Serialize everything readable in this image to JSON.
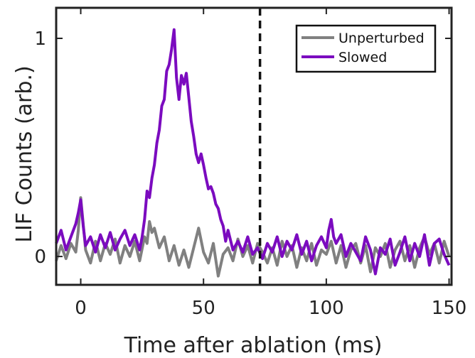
{
  "chart_data": {
    "type": "line",
    "title": "",
    "xlabel": "Time after ablation (ms)",
    "ylabel": "LIF Counts (arb.)",
    "xlim": [
      -10,
      151
    ],
    "ylim": [
      -0.13,
      1.14
    ],
    "xticks": [
      0,
      50,
      100,
      150
    ],
    "xtick_labels": [
      "0",
      "50",
      "100",
      "150"
    ],
    "yticks": [
      0,
      1
    ],
    "ytick_labels": [
      "0",
      "1"
    ],
    "grid": false,
    "legend_position": "top-right",
    "annotations": [
      {
        "type": "vertical-dashed-line",
        "x": 73
      }
    ],
    "series": [
      {
        "name": "Unperturbed",
        "color": "#808080",
        "x": [
          -10,
          -8,
          -6,
          -4,
          -2,
          -1,
          0,
          1,
          2,
          4,
          6,
          8,
          10,
          12,
          14,
          16,
          18,
          20,
          22,
          24,
          26,
          27,
          28,
          29,
          30,
          32,
          34,
          36,
          38,
          40,
          42,
          44,
          46,
          48,
          50,
          52,
          54,
          56,
          58,
          60,
          62,
          64,
          66,
          68,
          70,
          72,
          74,
          76,
          78,
          80,
          82,
          84,
          86,
          88,
          90,
          92,
          94,
          96,
          98,
          100,
          102,
          104,
          106,
          108,
          110,
          112,
          114,
          116,
          118,
          120,
          122,
          124,
          126,
          128,
          130,
          132,
          134,
          136,
          138,
          140,
          142,
          144,
          146,
          148,
          150
        ],
        "y": [
          -0.02,
          0.05,
          -0.01,
          0.06,
          0.02,
          0.12,
          0.27,
          0.15,
          0.03,
          -0.03,
          0.07,
          -0.02,
          0.06,
          0.01,
          0.08,
          -0.03,
          0.05,
          0.0,
          0.07,
          -0.02,
          0.09,
          0.06,
          0.16,
          0.11,
          0.13,
          0.04,
          0.09,
          -0.02,
          0.05,
          -0.04,
          0.03,
          -0.05,
          0.04,
          0.13,
          0.02,
          -0.03,
          0.06,
          -0.09,
          0.01,
          0.04,
          -0.02,
          0.08,
          0.0,
          0.05,
          -0.03,
          0.06,
          0.02,
          -0.03,
          0.04,
          -0.04,
          0.07,
          0.0,
          0.05,
          -0.05,
          0.04,
          -0.02,
          0.06,
          -0.04,
          0.03,
          0.01,
          0.07,
          -0.03,
          0.05,
          -0.05,
          0.03,
          0.06,
          -0.03,
          0.05,
          -0.07,
          0.04,
          0.0,
          0.06,
          -0.05,
          0.03,
          0.07,
          -0.02,
          0.05,
          -0.05,
          0.04,
          0.09,
          0.01,
          0.06,
          -0.03,
          0.07,
          0.0
        ]
      },
      {
        "name": "Slowed",
        "color": "#7b0bbf",
        "x": [
          -10,
          -8,
          -6,
          -4,
          -2,
          -1,
          0,
          1,
          2,
          4,
          6,
          8,
          10,
          12,
          14,
          16,
          18,
          20,
          22,
          24,
          25,
          26,
          27,
          28,
          29,
          30,
          31,
          32,
          33,
          34,
          35,
          36,
          37,
          38,
          39,
          40,
          41,
          42,
          43,
          44,
          45,
          46,
          47,
          48,
          49,
          50,
          51,
          52,
          53,
          54,
          55,
          56,
          57,
          58,
          59,
          60,
          62,
          64,
          66,
          68,
          70,
          72,
          74,
          76,
          78,
          80,
          82,
          84,
          86,
          88,
          90,
          92,
          94,
          96,
          98,
          100,
          101,
          102,
          103,
          104,
          106,
          108,
          110,
          112,
          114,
          116,
          118,
          120,
          122,
          124,
          126,
          128,
          130,
          132,
          134,
          136,
          138,
          140,
          142,
          144,
          146,
          148,
          150
        ],
        "y": [
          0.06,
          0.12,
          0.03,
          0.09,
          0.15,
          0.2,
          0.26,
          0.14,
          0.05,
          0.09,
          0.02,
          0.1,
          0.04,
          0.11,
          0.03,
          0.08,
          0.12,
          0.05,
          0.1,
          0.03,
          0.09,
          0.17,
          0.3,
          0.27,
          0.36,
          0.42,
          0.52,
          0.58,
          0.69,
          0.72,
          0.85,
          0.88,
          0.95,
          1.04,
          0.82,
          0.72,
          0.83,
          0.79,
          0.84,
          0.73,
          0.62,
          0.55,
          0.47,
          0.43,
          0.47,
          0.42,
          0.36,
          0.31,
          0.32,
          0.29,
          0.24,
          0.22,
          0.17,
          0.14,
          0.07,
          0.12,
          0.03,
          0.07,
          0.02,
          0.09,
          0.01,
          0.04,
          -0.01,
          0.06,
          0.02,
          0.09,
          0.0,
          0.07,
          0.03,
          0.1,
          0.01,
          0.07,
          -0.02,
          0.05,
          0.09,
          0.04,
          0.12,
          0.17,
          0.09,
          0.06,
          0.1,
          0.0,
          0.06,
          0.02,
          -0.02,
          0.09,
          0.03,
          -0.08,
          0.04,
          0.01,
          0.08,
          -0.04,
          0.02,
          0.09,
          -0.02,
          0.06,
          0.0,
          0.1,
          -0.04,
          0.06,
          0.08,
          0.01,
          -0.04
        ]
      }
    ]
  }
}
